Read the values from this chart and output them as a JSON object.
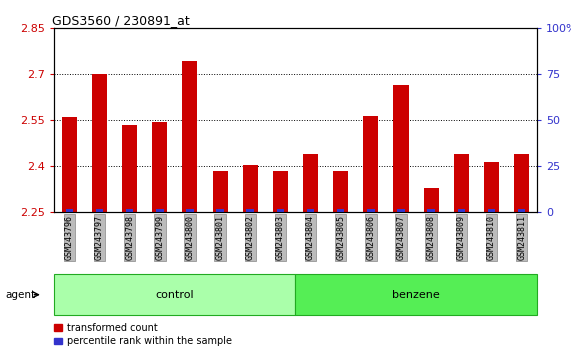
{
  "title": "GDS3560 / 230891_at",
  "samples": [
    "GSM243796",
    "GSM243797",
    "GSM243798",
    "GSM243799",
    "GSM243800",
    "GSM243801",
    "GSM243802",
    "GSM243803",
    "GSM243804",
    "GSM243805",
    "GSM243806",
    "GSM243807",
    "GSM243808",
    "GSM243809",
    "GSM243810",
    "GSM243811"
  ],
  "transformed_count": [
    2.56,
    2.7,
    2.535,
    2.545,
    2.745,
    2.385,
    2.405,
    2.385,
    2.44,
    2.385,
    2.565,
    2.665,
    2.33,
    2.44,
    2.415,
    2.44
  ],
  "percentile_rank_pct": [
    2.0,
    2.0,
    2.0,
    2.0,
    2.0,
    2.0,
    2.0,
    2.0,
    2.0,
    2.0,
    2.0,
    2.0,
    2.0,
    2.0,
    2.0,
    2.0
  ],
  "n_control": 8,
  "n_benzene": 8,
  "ylim_left": [
    2.25,
    2.85
  ],
  "ylim_right": [
    0,
    100
  ],
  "yticks_left": [
    2.25,
    2.4,
    2.55,
    2.7,
    2.85
  ],
  "yticks_right": [
    0,
    25,
    50,
    75,
    100
  ],
  "bar_color_red": "#cc0000",
  "bar_color_blue": "#3333cc",
  "grid_color": "#000000",
  "bg_plot": "#ffffff",
  "bg_xtick": "#bbbbbb",
  "control_color": "#aaffaa",
  "benzene_color": "#55ee55",
  "agent_label": "agent",
  "legend_red": "transformed count",
  "legend_blue": "percentile rank within the sample",
  "base_value": 2.25,
  "red_bar_width": 0.5,
  "blue_bar_width": 0.25
}
